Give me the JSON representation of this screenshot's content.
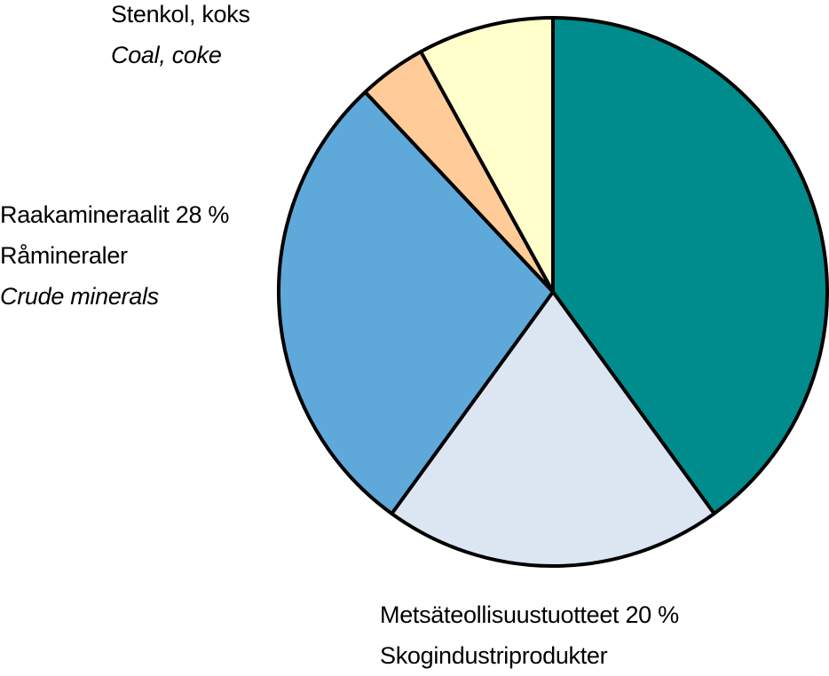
{
  "chart_data": {
    "type": "pie",
    "title": "",
    "slices": [
      {
        "key": "other",
        "value": 40,
        "color": "#008C8C",
        "labels": []
      },
      {
        "key": "forest",
        "value": 20,
        "color": "#DCE6F2",
        "labels": [
          "Metsäteollisuustuotteet 20 %",
          "Skogindustriprodukter"
        ]
      },
      {
        "key": "crude",
        "value": 28,
        "color": "#5FA8DA",
        "labels": [
          "Raakamineraalit 28 %",
          "Råmineraler",
          "Crude minerals"
        ]
      },
      {
        "key": "orange",
        "value": 4,
        "color": "#FFCC99",
        "labels": []
      },
      {
        "key": "coal",
        "value": 8,
        "color": "#FFFFCC",
        "labels": [
          "Stenkol, koks",
          "Coal, coke"
        ]
      }
    ]
  }
}
